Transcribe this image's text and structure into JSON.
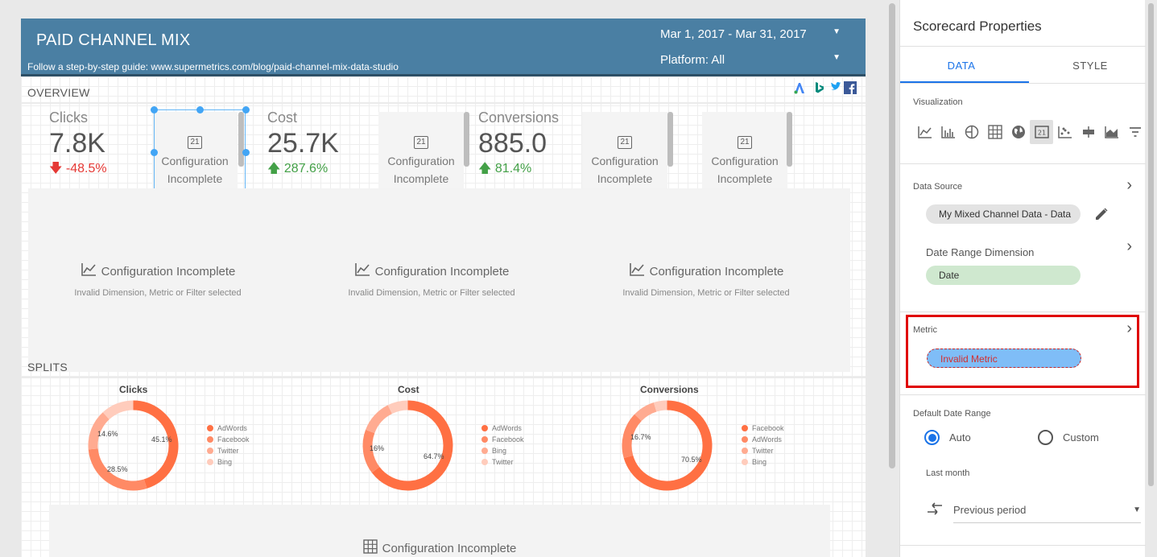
{
  "report": {
    "title": "PAID CHANNEL MIX",
    "subtitle": "Follow a step-by-step guide: www.supermetrics.com/blog/paid-channel-mix-data-studio",
    "date_range": "Mar 1, 2017 - Mar 31, 2017",
    "platform": "Platform: All",
    "overview_label": "OVERVIEW",
    "splits_label": "SPLITS",
    "brand_icons": [
      "adwords-icon",
      "bing-icon",
      "twitter-icon",
      "facebook-icon"
    ],
    "scorecards": [
      {
        "label": "Clicks",
        "value": "7.8K",
        "change": "-48.5%",
        "direction": "down"
      },
      {
        "label": "Cost",
        "value": "25.7K",
        "change": "287.6%",
        "direction": "up"
      },
      {
        "label": "Conversions",
        "value": "885.0",
        "change": "81.4%",
        "direction": "up"
      }
    ],
    "config_incomplete": "Configuration Incomplete",
    "config_line1": "Configuration",
    "config_line2": "Incomplete",
    "config_icon_text": "21",
    "invalid_text": "Invalid Dimension, Metric or Filter selected",
    "donuts": [
      {
        "title": "Clicks",
        "legend": [
          "AdWords",
          "Facebook",
          "Twitter",
          "Bing"
        ],
        "slices": [
          45.1,
          28.5,
          14.6,
          11.8
        ],
        "labels": [
          "45.1%",
          "28.5%",
          "14.6%"
        ]
      },
      {
        "title": "Cost",
        "legend": [
          "AdWords",
          "Facebook",
          "Bing",
          "Twitter"
        ],
        "slices": [
          64.7,
          16,
          12,
          7.3
        ],
        "labels": [
          "64.7%",
          "16%"
        ]
      },
      {
        "title": "Conversions",
        "legend": [
          "Facebook",
          "AdWords",
          "Twitter",
          "Bing"
        ],
        "slices": [
          70.5,
          16.7,
          8,
          4.8
        ],
        "labels": [
          "70.5%",
          "16.7%"
        ]
      }
    ],
    "legend_colors": [
      "#ff7043",
      "#ff8a65",
      "#ffab91",
      "#ffccbc"
    ]
  },
  "props": {
    "title": "Scorecard Properties",
    "tab_data": "DATA",
    "tab_style": "STYLE",
    "visualization_label": "Visualization",
    "data_source_label": "Data Source",
    "data_source": "My Mixed Channel Data - Data",
    "date_dim_label": "Date Range Dimension",
    "date_dim": "Date",
    "metric_label": "Metric",
    "metric": "Invalid Metric",
    "default_date_label": "Default Date Range",
    "auto_label": "Auto",
    "custom_label": "Custom",
    "last_month": "Last month",
    "comparison": "Previous period"
  }
}
